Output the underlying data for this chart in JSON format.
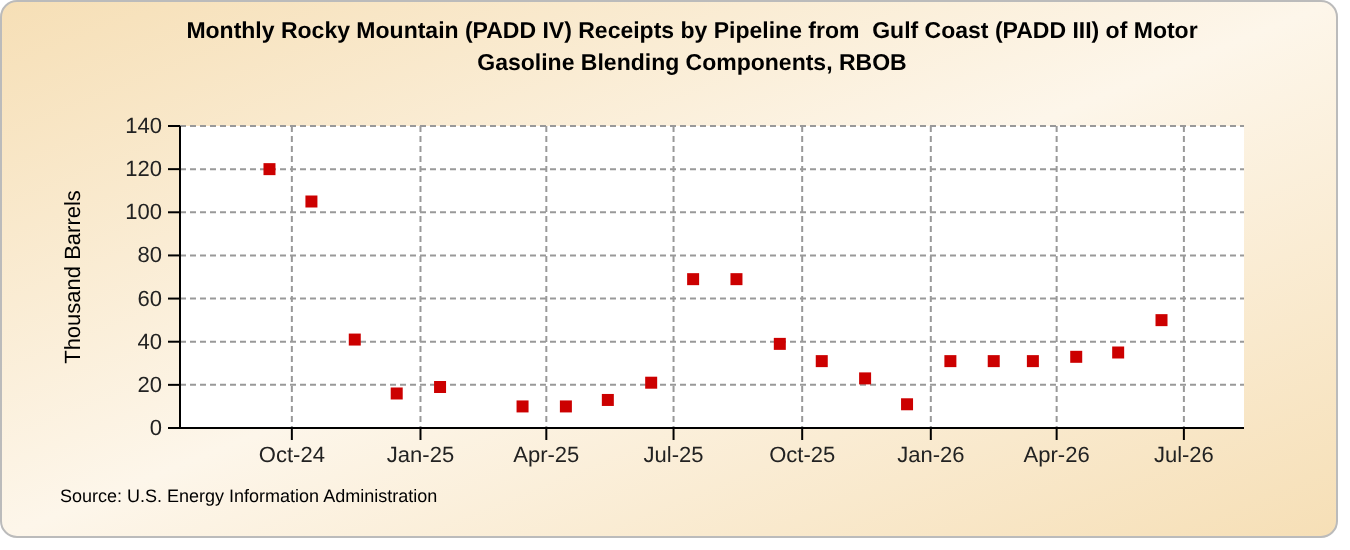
{
  "chart_data": {
    "type": "scatter",
    "title": "Monthly Rocky Mountain (PADD IV) Receipts by Pipeline from  Gulf Coast (PADD III) of Motor Gasoline Blending Components, RBOB",
    "ylabel": "Thousand Barrels",
    "annotations": [
      "Source: U.S. Energy Information Administration"
    ],
    "x": [
      "2024-09-15",
      "2024-10-15",
      "2024-11-15",
      "2024-12-15",
      "2025-01-15",
      "2025-03-15",
      "2025-04-15",
      "2025-05-15",
      "2025-06-15",
      "2025-07-15",
      "2025-08-15",
      "2025-09-15",
      "2025-10-15",
      "2025-11-15",
      "2025-12-15",
      "2026-01-15",
      "2026-02-15",
      "2026-03-15",
      "2026-04-15",
      "2026-05-15",
      "2026-06-15"
    ],
    "series": [
      {
        "color": "#cc0000",
        "values": [
          120,
          105,
          41,
          16,
          19,
          10,
          10,
          13,
          21,
          69,
          69,
          39,
          31,
          23,
          11,
          31,
          31,
          31,
          33,
          35,
          50
        ]
      }
    ],
    "xlim": [
      "2024-07-13",
      "2026-08-13"
    ],
    "xticks": [
      {
        "value": "2024-10-01",
        "label": "Oct-24"
      },
      {
        "value": "2025-01-01",
        "label": "Jan-25"
      },
      {
        "value": "2025-04-01",
        "label": "Apr-25"
      },
      {
        "value": "2025-07-01",
        "label": "Jul-25"
      },
      {
        "value": "2025-10-01",
        "label": "Oct-25"
      },
      {
        "value": "2026-01-01",
        "label": "Jan-26"
      },
      {
        "value": "2026-04-01",
        "label": "Apr-26"
      },
      {
        "value": "2026-07-01",
        "label": "Jul-26"
      }
    ],
    "ylim": [
      0,
      140
    ],
    "yticks": [
      0,
      20,
      40,
      60,
      80,
      100,
      120,
      140
    ],
    "grid": true,
    "marker": "square"
  }
}
